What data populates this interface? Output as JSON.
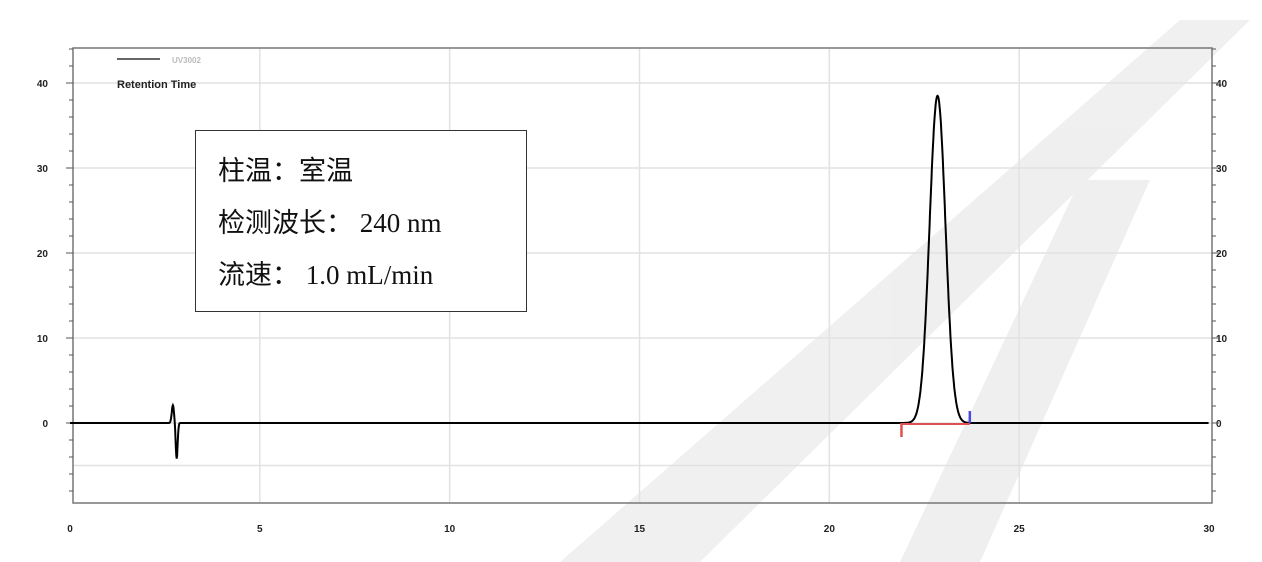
{
  "chart_data": {
    "type": "line",
    "title": "",
    "xlabel": "",
    "ylabel": "",
    "xlim": [
      0,
      30
    ],
    "ylim": [
      -9.4,
      44
    ],
    "x_ticks": [
      0,
      5,
      10,
      15,
      20,
      25,
      30
    ],
    "y_ticks": [
      0,
      10,
      20,
      30,
      40
    ],
    "grid": true,
    "legend": {
      "position": "top-left",
      "entries": [
        "UV3002",
        "Retention Time"
      ]
    },
    "series": [
      {
        "name": "UV3002",
        "color": "#000000",
        "baseline": 0,
        "features": [
          {
            "kind": "disturbance",
            "x": 2.75,
            "max": 2.1,
            "min": -4.2
          },
          {
            "kind": "peak",
            "retention_time": 22.85,
            "height": 38.5,
            "start": 21.9,
            "end": 23.7
          }
        ]
      }
    ],
    "integration_markers": {
      "start_color": "#e05050",
      "end_color": "#4a4ae0",
      "baseline_color": "#e05050"
    },
    "annotation": {
      "lines": [
        "柱温：室温",
        "检测波长：  240 nm",
        "流速：  1.0 mL/min"
      ]
    }
  }
}
